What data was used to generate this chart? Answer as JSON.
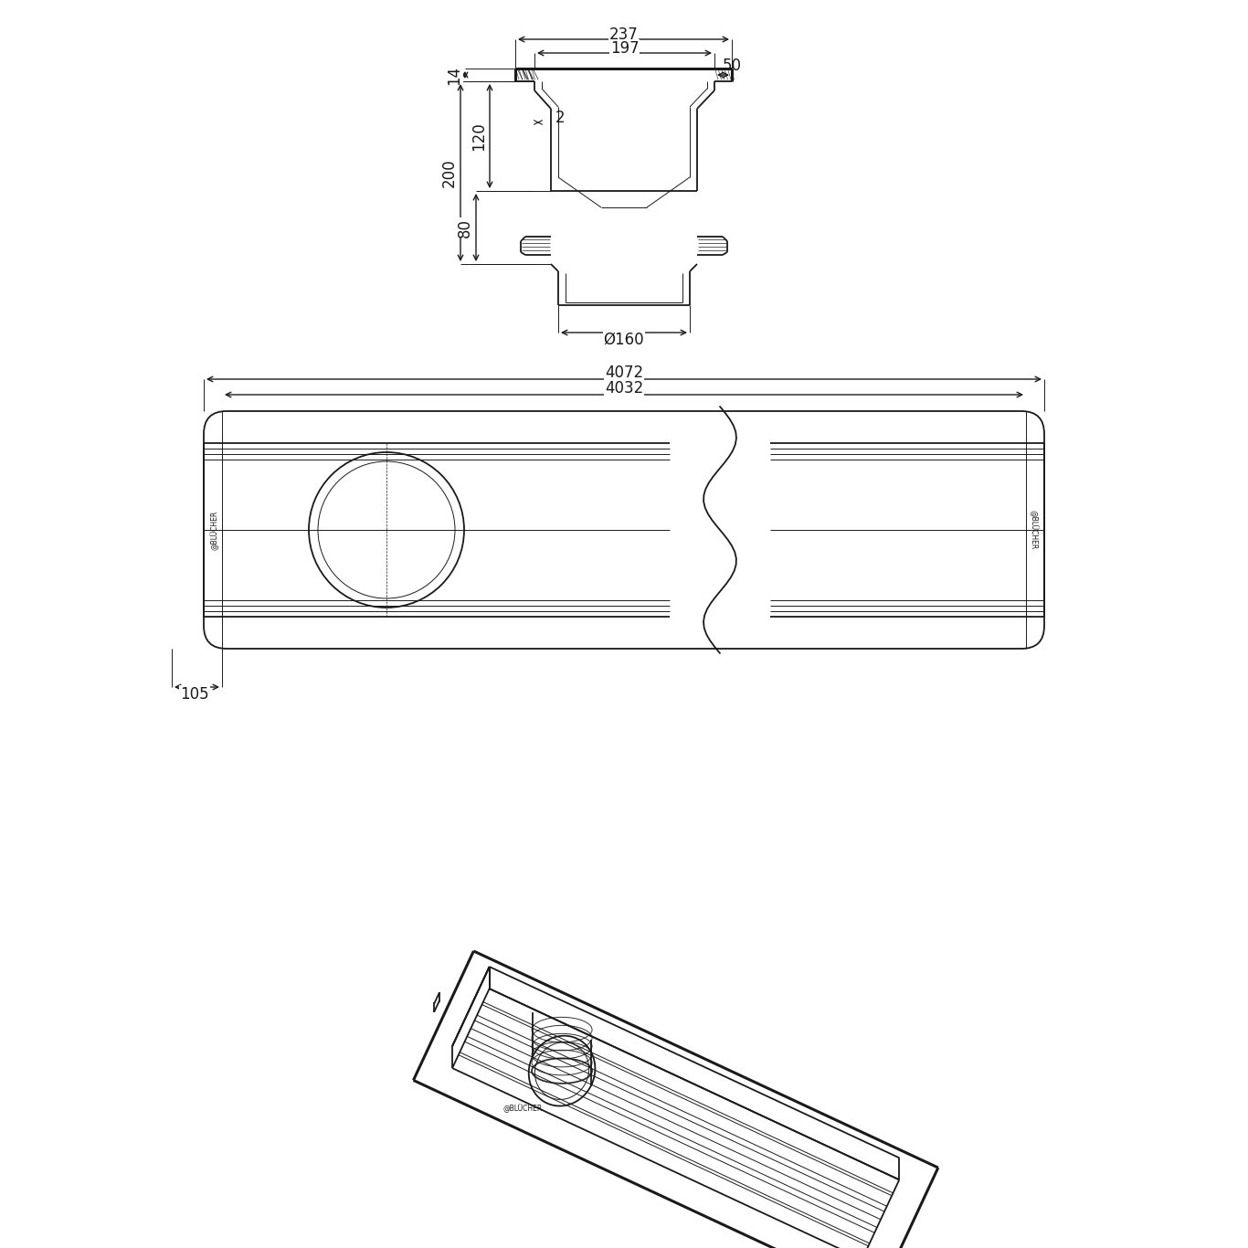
{
  "bg_color": "#ffffff",
  "line_color": "#1a1a1a",
  "lw": 1.3,
  "tlw": 0.7,
  "thk": 2.2,
  "annotations": {
    "dim_237": "237",
    "dim_197": "197",
    "dim_50": "50",
    "dim_14": "14",
    "dim_2": "2",
    "dim_120": "120",
    "dim_200": "200",
    "dim_80": "80",
    "dim_160": "Ø160",
    "dim_4072": "4072",
    "dim_4032": "4032",
    "dim_105": "105"
  }
}
